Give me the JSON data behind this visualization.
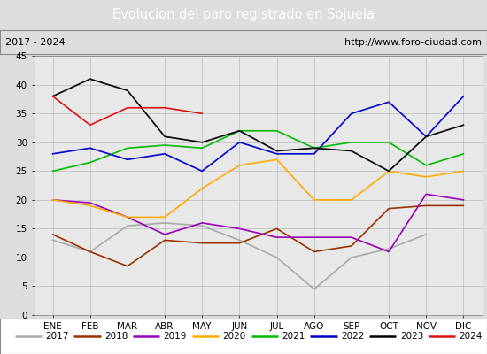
{
  "title": "Evolucion del paro registrado en Sojuela",
  "title_color": "#ffffff",
  "title_bg_color": "#5599cc",
  "subtitle_left": "2017 - 2024",
  "subtitle_right": "http://www.foro-ciudad.com",
  "x_labels": [
    "ENE",
    "FEB",
    "MAR",
    "ABR",
    "MAY",
    "JUN",
    "JUL",
    "AGO",
    "SEP",
    "OCT",
    "NOV",
    "DIC"
  ],
  "y_min": 0,
  "y_max": 45,
  "y_ticks": [
    0,
    5,
    10,
    15,
    20,
    25,
    30,
    35,
    40,
    45
  ],
  "series_data": {
    "2017": [
      13,
      11,
      15.5,
      16,
      15.5,
      13,
      10,
      4.5,
      10,
      11.5,
      14,
      null
    ],
    "2018": [
      14,
      11,
      8.5,
      13,
      12.5,
      12.5,
      15,
      11,
      12,
      18.5,
      19,
      19
    ],
    "2019": [
      20,
      19.5,
      17,
      14,
      16,
      15,
      13.5,
      13.5,
      13.5,
      11,
      21,
      20
    ],
    "2020": [
      20,
      19,
      17,
      17,
      22,
      26,
      27,
      20,
      20,
      25,
      24,
      25
    ],
    "2021": [
      25,
      26.5,
      29,
      29.5,
      29,
      32,
      32,
      29,
      30,
      30,
      26,
      28
    ],
    "2022": [
      28,
      29,
      27,
      28,
      25,
      30,
      28,
      28,
      35,
      37,
      31,
      38
    ],
    "2023": [
      38,
      41,
      39,
      31,
      30,
      32,
      28.5,
      29,
      28.5,
      25,
      31,
      33
    ],
    "2024": [
      38,
      33,
      36,
      36,
      35,
      null,
      null,
      null,
      null,
      null,
      null,
      null
    ]
  },
  "series_colors": {
    "2017": "#aaaaaa",
    "2018": "#993300",
    "2019": "#9900bb",
    "2020": "#ffaa00",
    "2021": "#00bb00",
    "2022": "#0000cc",
    "2023": "#000000",
    "2024": "#dd1111"
  },
  "years_order": [
    "2017",
    "2018",
    "2019",
    "2020",
    "2021",
    "2022",
    "2023",
    "2024"
  ],
  "bg_color": "#dddddd",
  "plot_bg_color": "#e8e8e8",
  "grid_color": "#bbbbbb",
  "legend_bg": "#ffffff"
}
